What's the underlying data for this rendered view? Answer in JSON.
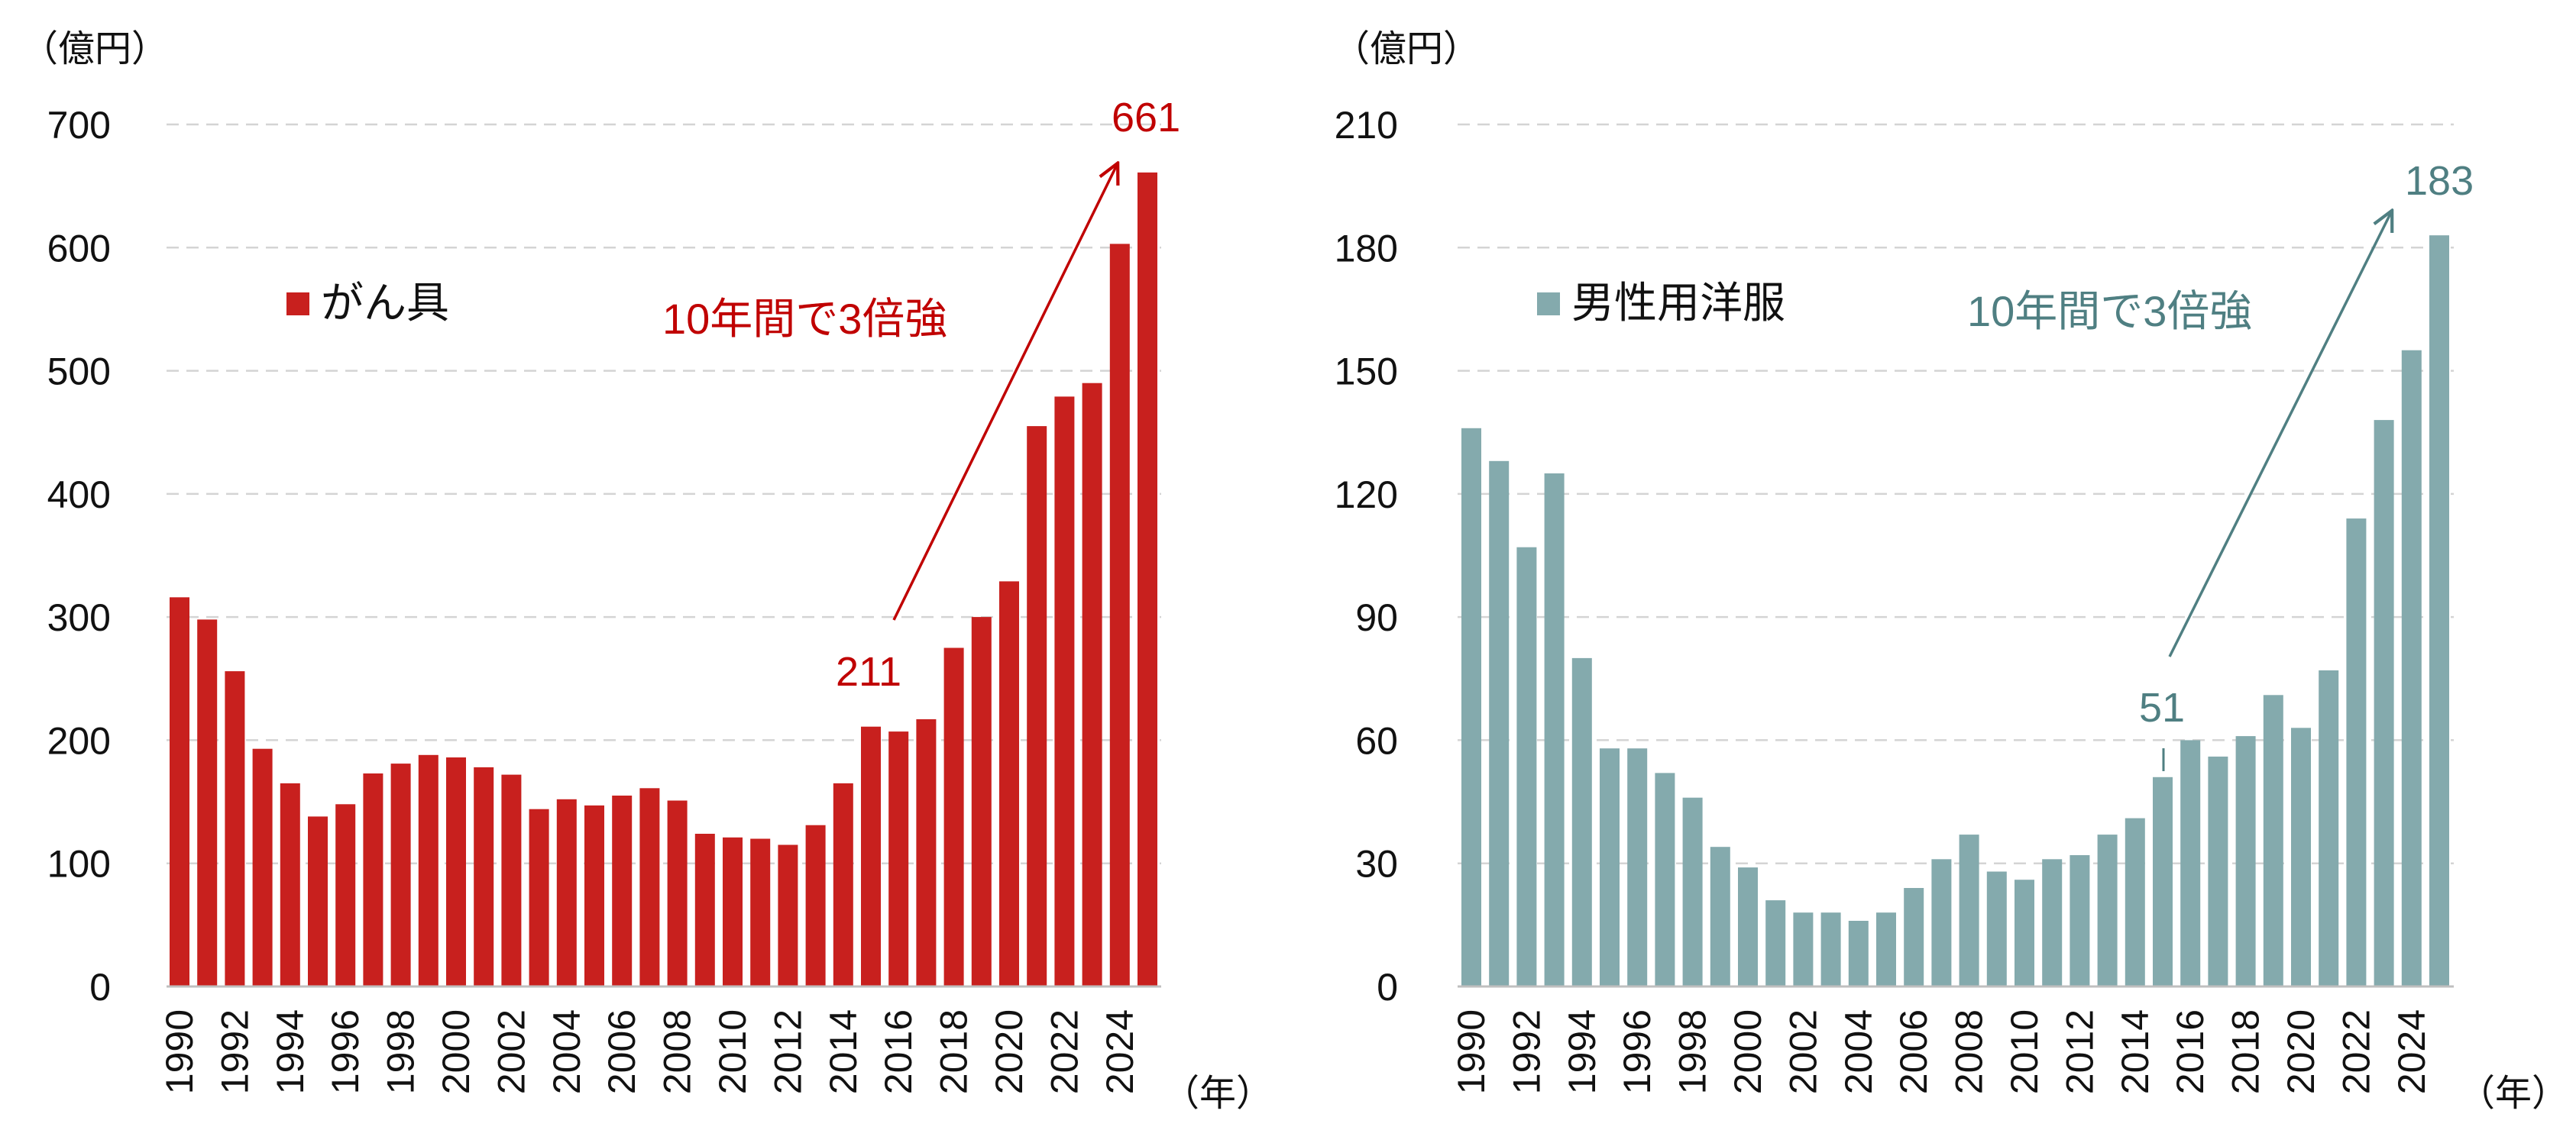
{
  "chart_data": [
    {
      "type": "bar",
      "unit_label": "（億円）",
      "x_unit_label": "（年）",
      "legend": "がん具",
      "color": "#c8201e",
      "annotation_color": "#c00000",
      "ylim": [
        0,
        700
      ],
      "yticks": [
        "0",
        "100",
        "200",
        "300",
        "400",
        "500",
        "600",
        "700"
      ],
      "grid": true,
      "legend_position": "top-left",
      "categories": [
        1990,
        1991,
        1992,
        1993,
        1994,
        1995,
        1996,
        1997,
        1998,
        1999,
        2000,
        2001,
        2002,
        2003,
        2004,
        2005,
        2006,
        2007,
        2008,
        2009,
        2010,
        2011,
        2012,
        2013,
        2014,
        2015,
        2016,
        2017,
        2018,
        2019,
        2020,
        2021,
        2022,
        2023,
        2024,
        2025
      ],
      "xtick_labels": [
        "1990",
        "1992",
        "1994",
        "1996",
        "1998",
        "2000",
        "2002",
        "2004",
        "2006",
        "2008",
        "2010",
        "2012",
        "2014",
        "2016",
        "2018",
        "2020",
        "2022",
        "2024"
      ],
      "values": [
        316,
        298,
        256,
        193,
        165,
        138,
        148,
        173,
        181,
        188,
        186,
        178,
        172,
        144,
        152,
        147,
        155,
        161,
        151,
        124,
        121,
        120,
        115,
        131,
        165,
        211,
        207,
        217,
        275,
        300,
        329,
        455,
        479,
        490,
        603,
        661
      ],
      "annotation_text": "10年間で3倍強",
      "start_label": "211",
      "end_label": "661"
    },
    {
      "type": "bar",
      "unit_label": "（億円）",
      "x_unit_label": "（年）",
      "legend": "男性用洋服",
      "color": "#84aaad",
      "annotation_color": "#4f7f82",
      "ylim": [
        0,
        210
      ],
      "yticks": [
        "0",
        "30",
        "60",
        "90",
        "120",
        "150",
        "180",
        "210"
      ],
      "grid": true,
      "legend_position": "top-left",
      "categories": [
        1990,
        1991,
        1992,
        1993,
        1994,
        1995,
        1996,
        1997,
        1998,
        1999,
        2000,
        2001,
        2002,
        2003,
        2004,
        2005,
        2006,
        2007,
        2008,
        2009,
        2010,
        2011,
        2012,
        2013,
        2014,
        2015,
        2016,
        2017,
        2018,
        2019,
        2020,
        2021,
        2022,
        2023,
        2024,
        2025
      ],
      "xtick_labels": [
        "1990",
        "1992",
        "1994",
        "1996",
        "1998",
        "2000",
        "2002",
        "2004",
        "2006",
        "2008",
        "2010",
        "2012",
        "2014",
        "2016",
        "2018",
        "2020",
        "2022",
        "2024"
      ],
      "values": [
        136,
        128,
        107,
        125,
        80,
        58,
        58,
        52,
        46,
        34,
        29,
        21,
        18,
        18,
        16,
        18,
        24,
        31,
        37,
        28,
        26,
        31,
        32,
        37,
        41,
        51,
        60,
        56,
        61,
        71,
        63,
        77,
        114,
        138,
        155,
        183
      ],
      "annotation_text": "10年間で3倍強",
      "start_label": "51",
      "end_label": "183"
    }
  ]
}
